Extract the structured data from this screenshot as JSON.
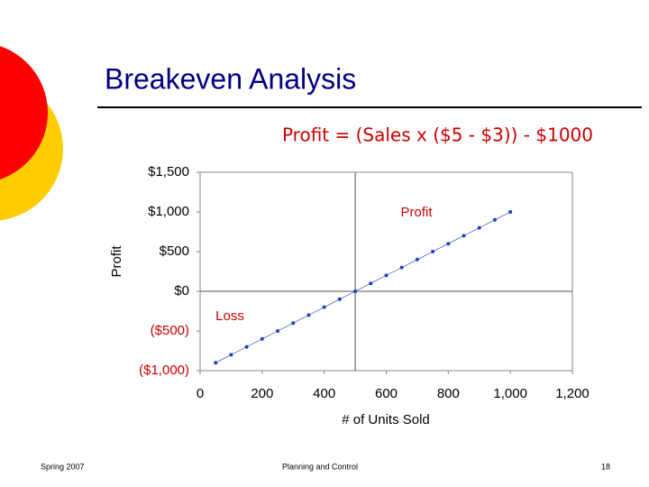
{
  "slide": {
    "title": "Breakeven Analysis",
    "formula": "Profit = (Sales x ($5 - $3)) - $1000",
    "footer": {
      "left": "Spring 2007",
      "center": "Planning and Control",
      "page": "18"
    }
  },
  "chart_data": {
    "type": "line",
    "x_label": "# of Units Sold",
    "y_label": "Profit",
    "x": [
      50,
      100,
      150,
      200,
      250,
      300,
      350,
      400,
      450,
      500,
      550,
      600,
      650,
      700,
      750,
      800,
      850,
      900,
      950,
      1000
    ],
    "series": [
      {
        "name": "Profit",
        "color": "#1f3fbf",
        "values": [
          -900,
          -800,
          -700,
          -600,
          -500,
          -400,
          -300,
          -200,
          -100,
          0,
          100,
          200,
          300,
          400,
          500,
          600,
          700,
          800,
          900,
          1000
        ]
      }
    ],
    "xlim": [
      0,
      1200
    ],
    "ylim": [
      -1000,
      1500
    ],
    "xticks": [
      0,
      200,
      400,
      600,
      800,
      {
        "value": 1000,
        "label": "1,000"
      },
      {
        "value": 1200,
        "label": "1,200"
      }
    ],
    "yticks": [
      {
        "value": -1000,
        "label": "($1,000)"
      },
      {
        "value": -500,
        "label": "($500)"
      },
      {
        "value": 0,
        "label": "$0"
      },
      {
        "value": 500,
        "label": "$500"
      },
      {
        "value": 1000,
        "label": "$1,000"
      },
      {
        "value": 1500,
        "label": "$1,500"
      }
    ],
    "reference_lines": {
      "x": 500,
      "y": 0
    },
    "negative_tick_color": "#cc0000",
    "annotations": [
      "Profit",
      "Loss"
    ],
    "annotation_color": "#cc0000"
  }
}
